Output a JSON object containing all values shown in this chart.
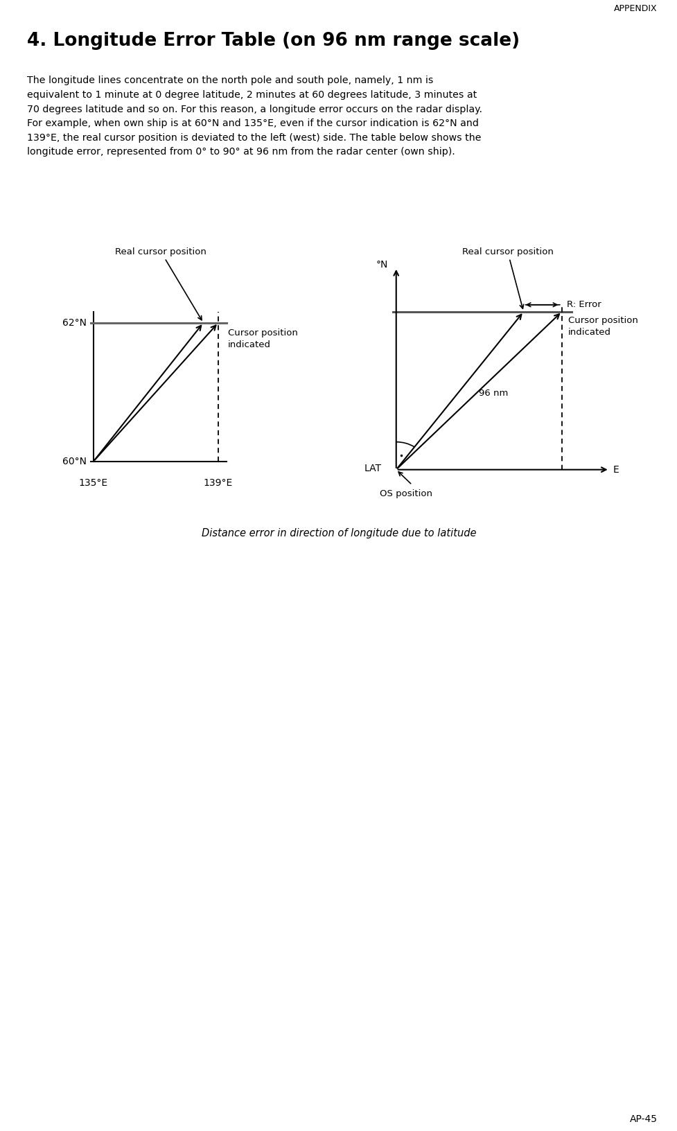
{
  "title": "4. Longitude Error Table (on 96 nm range scale)",
  "header_right": "APPENDIX",
  "footer_right": "AP-45",
  "body_text_lines": [
    "The longitude lines concentrate on the north pole and south pole, namely, 1 nm is",
    "equivalent to 1 minute at 0 degree latitude, 2 minutes at 60 degrees latitude, 3 minutes at",
    "70 degrees latitude and so on. For this reason, a longitude error occurs on the radar display.",
    "For example, when own ship is at 60°N and 135°E, even if the cursor indication is 62°N and",
    "139°E, the real cursor position is deviated to the left (west) side. The table below shows the",
    "longitude error, represented from 0° to 90° at 96 nm from the radar center (own ship)."
  ],
  "caption": "Distance error in direction of longitude due to latitude",
  "bg_color": "#ffffff",
  "text_color": "#000000",
  "line_color": "#000000"
}
